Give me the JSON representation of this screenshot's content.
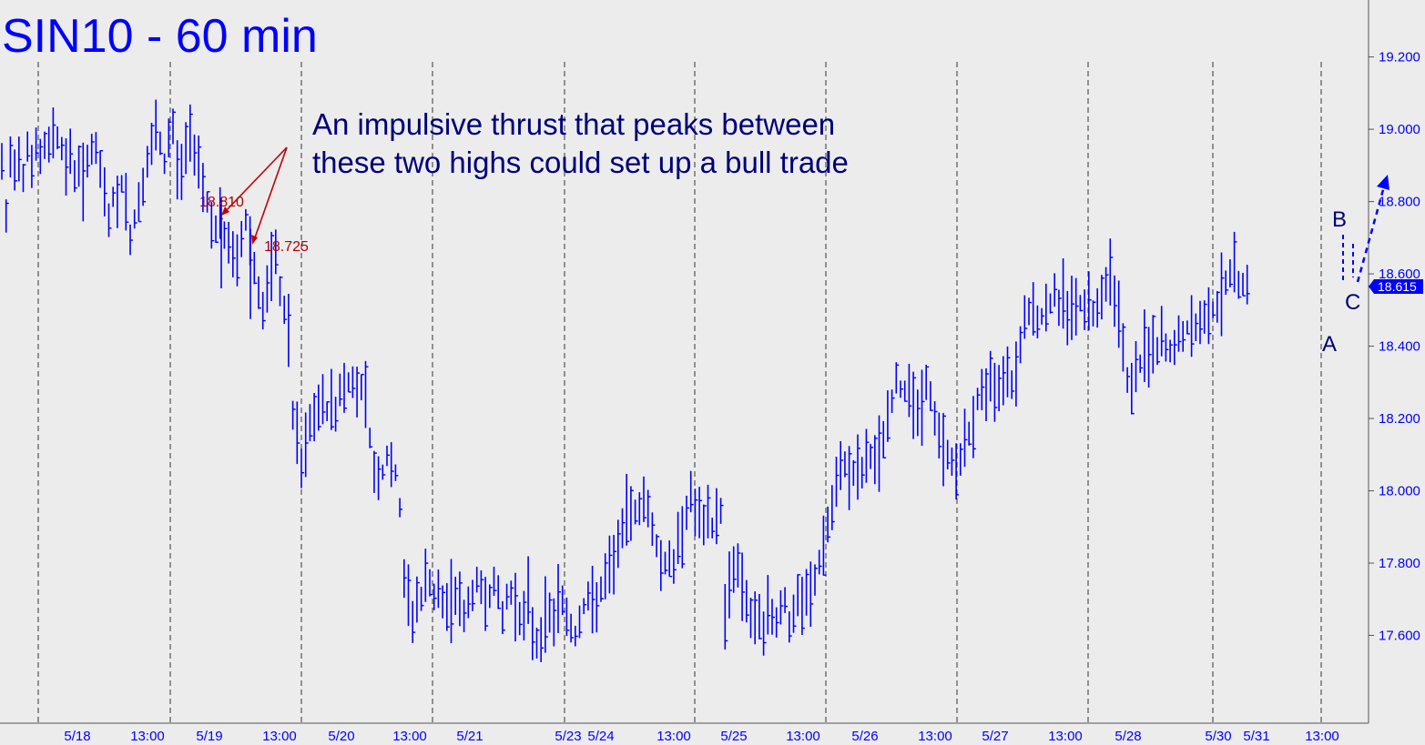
{
  "chart_data": {
    "type": "bar",
    "subtype": "ohlc-hilo",
    "title": "SIN10 - 60 min",
    "annotation": "An impulsive thrust that peaks between these two highs could set up a bull trade",
    "annotation_lines": [
      "An impulsive thrust that peaks between",
      "these two highs could set up a bull trade"
    ],
    "ylim": [
      17.4,
      19.35
    ],
    "y_ticks": [
      "19.200",
      "19.000",
      "18.800",
      "18.600",
      "18.400",
      "18.200",
      "18.000",
      "17.800",
      "17.600"
    ],
    "x_ticks": [
      "5/18",
      "13:00",
      "5/19",
      "13:00",
      "5/20",
      "13:00",
      "5/21",
      "5/23",
      "5/24",
      "13:00",
      "5/25",
      "13:00",
      "5/26",
      "13:00",
      "5/27",
      "13:00",
      "5/28",
      "5/30",
      "5/31",
      "13:00"
    ],
    "x_tick_pos": [
      85,
      162,
      230,
      307,
      375,
      450,
      516,
      624,
      660,
      740,
      806,
      882,
      950,
      1027,
      1093,
      1170,
      1239,
      1338,
      1380,
      1452
    ],
    "session_dividers": [
      42,
      187,
      331,
      475,
      620,
      763,
      907,
      1051,
      1195,
      1332,
      1451
    ],
    "last_price": "18.615",
    "highs_marked": [
      {
        "label": "18.810",
        "value": 18.81,
        "x": 243
      },
      {
        "label": "18.725",
        "value": 18.725,
        "x": 275
      }
    ],
    "wave_labels": [
      "A",
      "B",
      "C"
    ],
    "colors": {
      "bars": "#0000ff",
      "annotation": "#b00000",
      "background": "#ececec",
      "label": "#00007a"
    },
    "series": [
      {
        "bar_x_start": 2,
        "bar_x_step": 4.7,
        "mid": [
          18.9,
          18.75,
          18.92,
          18.9,
          18.93,
          18.88,
          18.96,
          18.9,
          18.95,
          18.92,
          18.95,
          18.95,
          19.0,
          18.98,
          18.95,
          18.9,
          18.93,
          18.88,
          18.9,
          18.85,
          18.92,
          18.95,
          18.93,
          18.88,
          18.82,
          18.75,
          18.82,
          18.78,
          18.85,
          18.8,
          18.7,
          18.75,
          18.8,
          18.85,
          18.9,
          18.95,
          19.0,
          18.95,
          18.9,
          18.98,
          19.0,
          18.9,
          18.88,
          18.95,
          18.98,
          18.95,
          18.92,
          18.85,
          18.8,
          18.75,
          18.72,
          18.75,
          18.7,
          18.68,
          18.66,
          18.62,
          18.7,
          18.75,
          18.7,
          18.62,
          18.55,
          18.5,
          18.55,
          18.6,
          18.65,
          18.55,
          18.5,
          18.45,
          18.2,
          18.15,
          18.05,
          18.12,
          18.18,
          18.2,
          18.22,
          18.25,
          18.22,
          18.25,
          18.22,
          18.28,
          18.28,
          18.3,
          18.3,
          18.28,
          18.3,
          18.26,
          18.15,
          18.05,
          18.05,
          18.05,
          18.1,
          18.05,
          18.05,
          17.95,
          17.75,
          17.7,
          17.65,
          17.7,
          17.7,
          17.75,
          17.75,
          17.7,
          17.72,
          17.68,
          17.68,
          17.7,
          17.72,
          17.7,
          17.65,
          17.68,
          17.72,
          17.75,
          17.72,
          17.7,
          17.72,
          17.75,
          17.7,
          17.65,
          17.7,
          17.72,
          17.7,
          17.65,
          17.65,
          17.7,
          17.62,
          17.58,
          17.6,
          17.65,
          17.66,
          17.65,
          17.7,
          17.7,
          17.65,
          17.62,
          17.6,
          17.65,
          17.68,
          17.7,
          17.68,
          17.7,
          17.72,
          17.75,
          17.78,
          17.8,
          17.85,
          17.9,
          17.92,
          17.95,
          17.95,
          17.95,
          17.98,
          17.95,
          17.9,
          17.85,
          17.8,
          17.8,
          17.82,
          17.78,
          17.85,
          17.9,
          17.95,
          17.98,
          17.95,
          17.92,
          17.9,
          17.92,
          17.9,
          17.92,
          17.95,
          17.65,
          17.75,
          17.8,
          17.78,
          17.75,
          17.7,
          17.65,
          17.62,
          17.65,
          17.62,
          17.66,
          17.65,
          17.65,
          17.68,
          17.7,
          17.62,
          17.65,
          17.7,
          17.68,
          17.7,
          17.72,
          17.75,
          17.8,
          17.85,
          17.9,
          17.95,
          18.0,
          18.05,
          18.08,
          18.05,
          18.05,
          18.05,
          18.05,
          18.08,
          18.1,
          18.08,
          18.1,
          18.15,
          18.2,
          18.25,
          18.3,
          18.28,
          18.28,
          18.3,
          18.25,
          18.2,
          18.25,
          18.3,
          18.25,
          18.2,
          18.15,
          18.12,
          18.1,
          18.08,
          18.05,
          18.1,
          18.12,
          18.15,
          18.2,
          18.25,
          18.28,
          18.28,
          18.3,
          18.25,
          18.3,
          18.32,
          18.35,
          18.3,
          18.35,
          18.4,
          18.5,
          18.5,
          18.5,
          18.48,
          18.48,
          18.5,
          18.52,
          18.55,
          18.5,
          18.55,
          18.5,
          18.52,
          18.5,
          18.52,
          18.5,
          18.52,
          18.5,
          18.52,
          18.55,
          18.58,
          18.6,
          18.55,
          18.5,
          18.4,
          18.3,
          18.3,
          18.32,
          18.35,
          18.4,
          18.38,
          18.4,
          18.38,
          18.42,
          18.4,
          18.38,
          18.4,
          18.42,
          18.42,
          18.45,
          18.45,
          18.45,
          18.45,
          18.48,
          18.5,
          18.5,
          18.52,
          18.55,
          18.58,
          18.6,
          18.6,
          18.58,
          18.58,
          18.58
        ]
      }
    ]
  }
}
